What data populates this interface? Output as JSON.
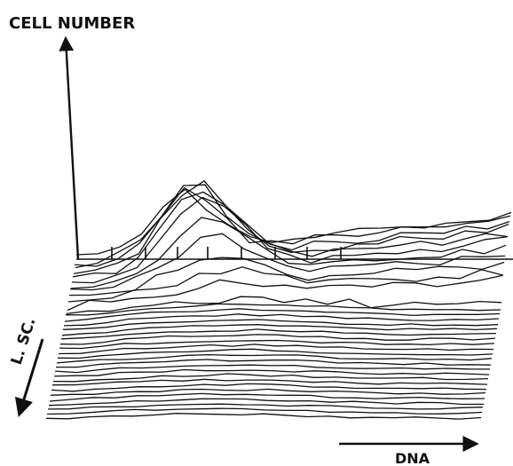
{
  "chart_data": {
    "type": "line",
    "projection": "3d-isometric",
    "x_axis_label": "DNA",
    "y_axis_label": "CELL NUMBER",
    "z_axis_label": "L. SC.",
    "x": [
      0,
      0.05,
      0.1,
      0.15,
      0.2,
      0.25,
      0.3,
      0.35,
      0.4,
      0.45,
      0.5,
      0.55,
      0.6,
      0.65,
      0.7,
      0.75,
      0.8,
      0.85,
      0.9,
      0.95,
      1.0
    ],
    "series_count": 35,
    "front_profile": [
      0,
      0.05,
      0.25,
      0.45,
      0.6,
      0.72,
      0.8,
      0.85,
      0.88,
      0.86,
      0.8,
      0.7,
      0.55,
      0.42,
      0.32,
      0.26,
      0.22,
      0.2,
      0.18,
      0.16,
      0.15
    ],
    "back_peaks": [
      0.45,
      0.6,
      0.8,
      0.95,
      1.0,
      0.9,
      0.7,
      0.5,
      0.3,
      0.15
    ],
    "line_color": "#111111"
  }
}
